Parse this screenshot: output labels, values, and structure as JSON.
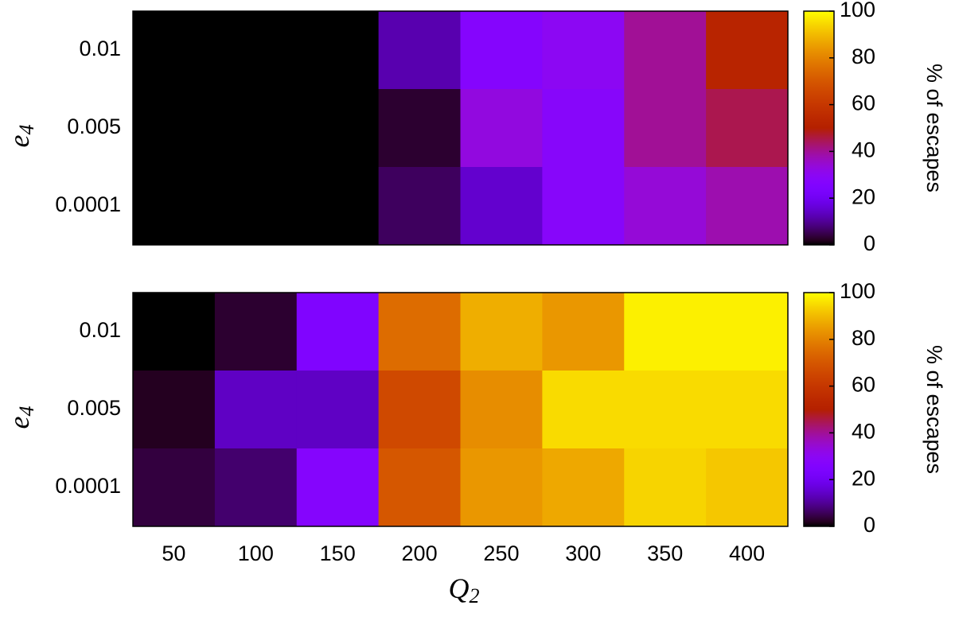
{
  "chart_data": [
    {
      "type": "heatmap",
      "y_categories": [
        "0.01",
        "0.005",
        "0.0001"
      ],
      "ylabel": {
        "main": "e",
        "sub": "4"
      },
      "values": [
        [
          0,
          0,
          0,
          12,
          27,
          30,
          40,
          52
        ],
        [
          0,
          0,
          0,
          3,
          33,
          28,
          40,
          45
        ],
        [
          0,
          0,
          0,
          6,
          15,
          28,
          34,
          38
        ]
      ],
      "zlim": [
        0,
        100
      ],
      "zticks": [
        0,
        20,
        40,
        60,
        80,
        100
      ],
      "colorbar_label": "% of escapes"
    },
    {
      "type": "heatmap",
      "categories": [
        "50",
        "100",
        "150",
        "200",
        "250",
        "300",
        "350",
        "400"
      ],
      "xlabel": {
        "main": "Q",
        "sub": "2"
      },
      "y_categories": [
        "0.01",
        "0.005",
        "0.0001"
      ],
      "ylabel": {
        "main": "e",
        "sub": "4"
      },
      "values": [
        [
          0,
          3,
          25,
          75,
          88,
          84,
          98,
          98
        ],
        [
          2,
          14,
          14,
          66,
          82,
          95,
          95,
          95
        ],
        [
          4,
          7,
          27,
          70,
          84,
          87,
          94,
          92
        ]
      ],
      "zlim": [
        0,
        100
      ],
      "zticks": [
        0,
        20,
        40,
        60,
        80,
        100
      ],
      "colorbar_label": "% of escapes"
    }
  ]
}
